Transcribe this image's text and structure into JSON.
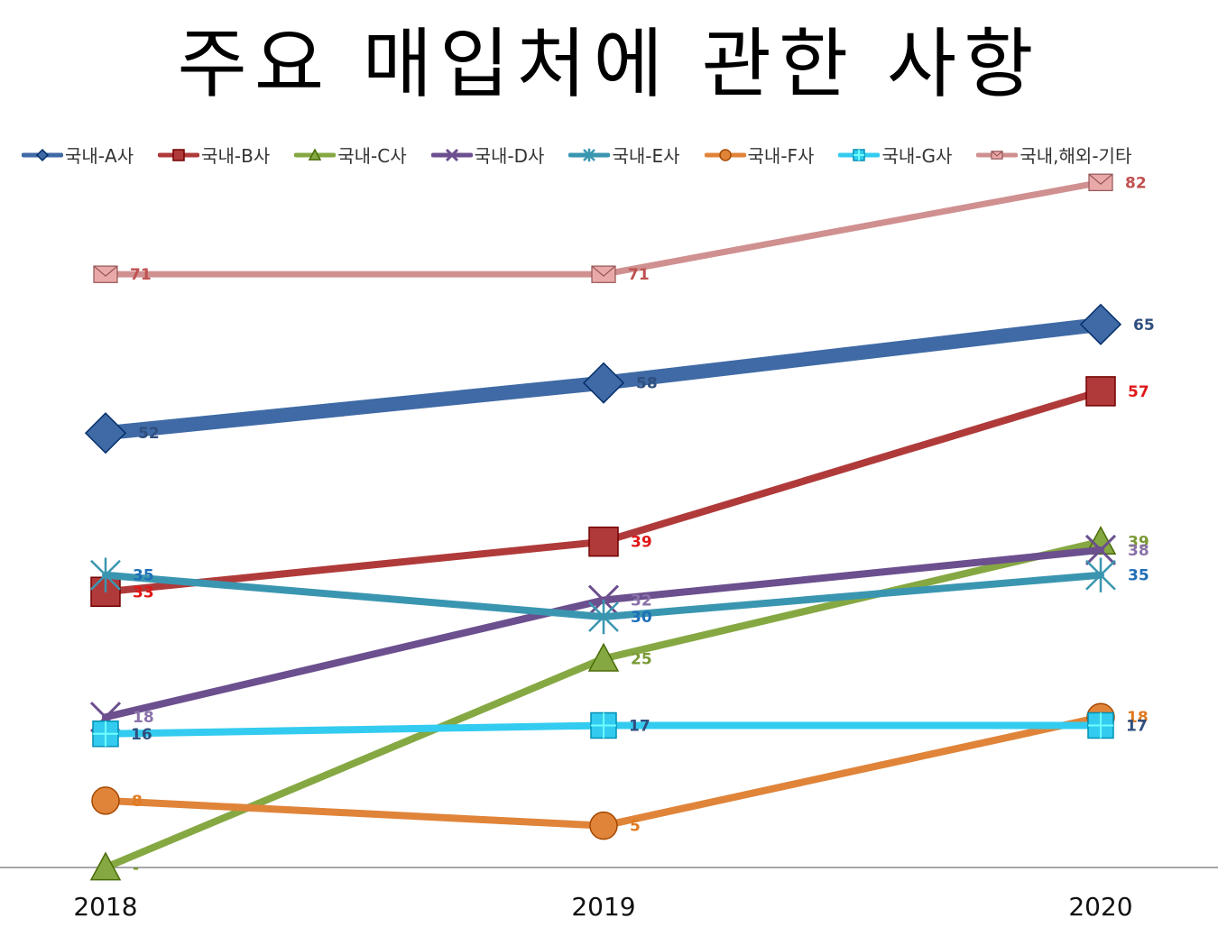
{
  "title": "주요 매입처에 관한 사항",
  "chart_data": {
    "type": "line",
    "title": "주요 매입처에 관한 사항",
    "categories": [
      "2018",
      "2019",
      "2020"
    ],
    "ylim": [
      0,
      90
    ],
    "legend_position": "top",
    "grid": false,
    "series": [
      {
        "name": "국내-A사",
        "values": [
          52,
          58,
          65
        ],
        "labels": [
          "52",
          "58",
          "65"
        ],
        "color": "#3f6aa5",
        "label_color": "#2f4f7f",
        "marker": "diamond"
      },
      {
        "name": "국내-B사",
        "values": [
          33,
          39,
          57
        ],
        "labels": [
          "33",
          "39",
          "57"
        ],
        "color": "#b03a3a",
        "label_color": "#e01818",
        "marker": "square"
      },
      {
        "name": "국내-C사",
        "values": [
          0,
          25,
          39
        ],
        "labels": [
          "-",
          "25",
          "39"
        ],
        "color": "#86a843",
        "label_color": "#7a9a35",
        "marker": "triangle"
      },
      {
        "name": "국내-D사",
        "values": [
          18,
          32,
          38
        ],
        "labels": [
          "18",
          "32",
          "38"
        ],
        "color": "#6c4f8e",
        "label_color": "#8a72aa",
        "marker": "x"
      },
      {
        "name": "국내-E사",
        "values": [
          35,
          30,
          35
        ],
        "labels": [
          "35",
          "30",
          "35"
        ],
        "color": "#3a96b0",
        "label_color": "#1e6fb8",
        "marker": "star"
      },
      {
        "name": "국내-F사",
        "values": [
          8,
          5,
          18
        ],
        "labels": [
          "8",
          "5",
          "18"
        ],
        "color": "#e0843a",
        "label_color": "#e07a20",
        "marker": "circle"
      },
      {
        "name": "국내-G사",
        "values": [
          16,
          17,
          17
        ],
        "labels": [
          "16",
          "17",
          "17"
        ],
        "color": "#33ccf0",
        "label_color": "#2f4f7f",
        "marker": "plussquare"
      },
      {
        "name": "국내,해외-기타",
        "values": [
          71,
          71,
          82
        ],
        "labels": [
          "71",
          "71",
          "82"
        ],
        "color": "#d09090",
        "label_color": "#c05050",
        "marker": "envelope"
      }
    ]
  }
}
